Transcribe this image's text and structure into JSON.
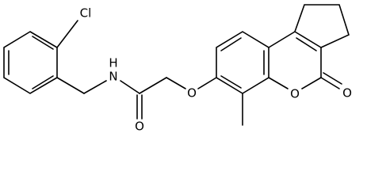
{
  "atom_labels": [
    "Cl",
    "H",
    "N",
    "O",
    "O",
    "O",
    "O"
  ]
}
